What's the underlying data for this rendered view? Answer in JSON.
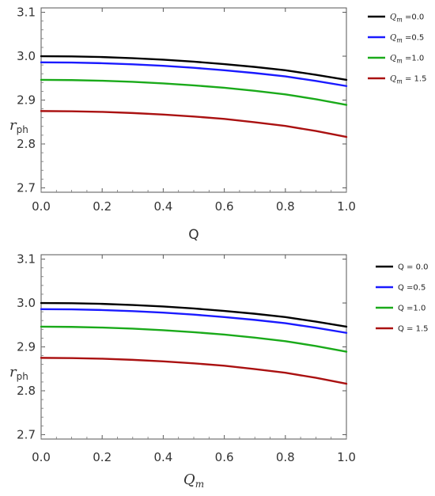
{
  "chart_data": [
    {
      "type": "line",
      "xlabel": "Q",
      "ylabel": "r",
      "ylabel_sub": "ph",
      "xlim": [
        0,
        1
      ],
      "ylim": [
        2.69,
        3.11
      ],
      "xticks": [
        "0.0",
        "0.2",
        "0.4",
        "0.6",
        "0.8",
        "1.0"
      ],
      "yticks": [
        "2.7",
        "2.8",
        "2.9",
        "3.0",
        "3.1"
      ],
      "grid": false,
      "legend_position": "right",
      "x": [
        0.0,
        0.1,
        0.2,
        0.3,
        0.4,
        0.5,
        0.6,
        0.7,
        0.8,
        0.9,
        1.0
      ],
      "series": [
        {
          "name": "Qm =0.0",
          "legend_sym": "Q",
          "legend_sub": "m",
          "legend_rest": " =0.0",
          "color": "#000000",
          "values": [
            3.0,
            2.9995,
            2.998,
            2.9955,
            2.992,
            2.9875,
            2.982,
            2.9755,
            2.968,
            2.9575,
            2.946
          ]
        },
        {
          "name": "Qm =0.5",
          "legend_sym": "Q",
          "legend_sub": "m",
          "legend_rest": " =0.5",
          "color": "#1a1aff",
          "values": [
            2.986,
            2.9855,
            2.984,
            2.9815,
            2.978,
            2.9735,
            2.968,
            2.9615,
            2.954,
            2.9435,
            2.932
          ]
        },
        {
          "name": "Qm =1.0",
          "legend_sym": "Q",
          "legend_sub": "m",
          "legend_rest": " =1.0",
          "color": "#1aaa1a",
          "values": [
            2.946,
            2.9455,
            2.944,
            2.9415,
            2.938,
            2.9335,
            2.928,
            2.921,
            2.913,
            2.902,
            2.889
          ]
        },
        {
          "name": "Qm = 1.5",
          "legend_sym": "Q",
          "legend_sub": "m",
          "legend_rest": " = 1.5",
          "color": "#aa1111",
          "values": [
            2.875,
            2.8745,
            2.873,
            2.8705,
            2.867,
            2.8625,
            2.857,
            2.8495,
            2.841,
            2.8295,
            2.816
          ]
        }
      ]
    },
    {
      "type": "line",
      "xlabel": "Q",
      "xlabel_sub": "m",
      "ylabel": "r",
      "ylabel_sub": "ph",
      "xlim": [
        0,
        1
      ],
      "ylim": [
        2.69,
        3.11
      ],
      "xticks": [
        "0.0",
        "0.2",
        "0.4",
        "0.6",
        "0.8",
        "1.0"
      ],
      "yticks": [
        "2.7",
        "2.8",
        "2.9",
        "3.0",
        "3.1"
      ],
      "grid": false,
      "legend_position": "right",
      "x": [
        0.0,
        0.1,
        0.2,
        0.3,
        0.4,
        0.5,
        0.6,
        0.7,
        0.8,
        0.9,
        1.0
      ],
      "series": [
        {
          "name": "Q = 0.0",
          "legend_sym": "Q",
          "legend_sub": "",
          "legend_rest": " = 0.0",
          "color": "#000000",
          "values": [
            3.0,
            2.9995,
            2.998,
            2.9955,
            2.992,
            2.9875,
            2.982,
            2.9755,
            2.968,
            2.9575,
            2.946
          ]
        },
        {
          "name": "Q =0.5",
          "legend_sym": "Q",
          "legend_sub": "",
          "legend_rest": " =0.5",
          "color": "#1a1aff",
          "values": [
            2.986,
            2.9855,
            2.984,
            2.9815,
            2.978,
            2.9735,
            2.968,
            2.9615,
            2.954,
            2.9435,
            2.932
          ]
        },
        {
          "name": "Q =1.0",
          "legend_sym": "Q",
          "legend_sub": "",
          "legend_rest": " =1.0",
          "color": "#1aaa1a",
          "values": [
            2.946,
            2.9455,
            2.944,
            2.9415,
            2.938,
            2.9335,
            2.928,
            2.921,
            2.913,
            2.902,
            2.889
          ]
        },
        {
          "name": "Q = 1.5",
          "legend_sym": "Q",
          "legend_sub": "",
          "legend_rest": " = 1.5",
          "color": "#aa1111",
          "values": [
            2.875,
            2.8745,
            2.873,
            2.8705,
            2.867,
            2.8625,
            2.857,
            2.8495,
            2.841,
            2.8295,
            2.816
          ]
        }
      ]
    }
  ]
}
